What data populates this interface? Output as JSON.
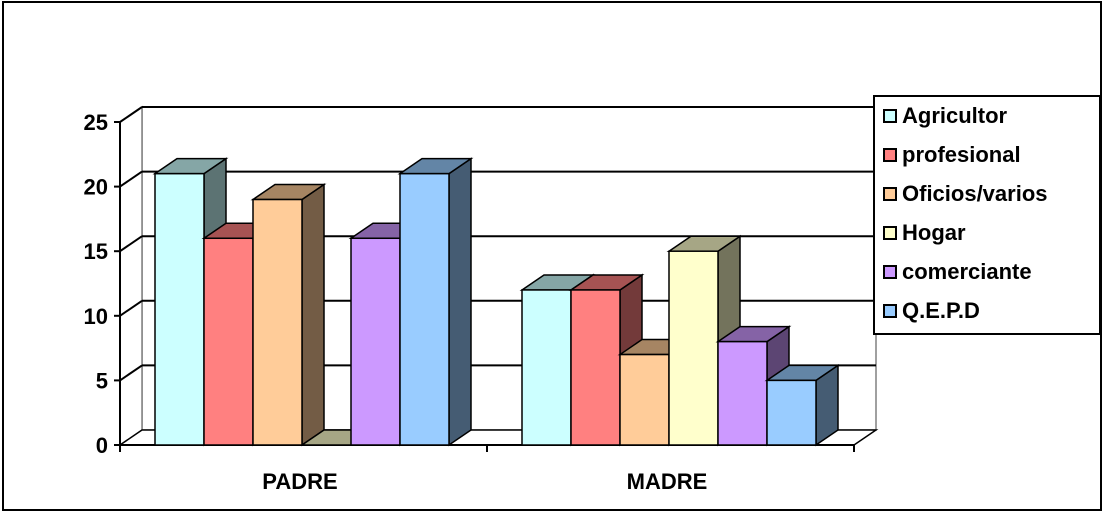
{
  "chart_data": {
    "type": "bar",
    "style": "3d-clustered",
    "categories": [
      "PADRE",
      "MADRE"
    ],
    "series": [
      {
        "name": "Agricultor",
        "values": [
          21,
          12
        ],
        "color": "#ccffff"
      },
      {
        "name": "profesional",
        "values": [
          16,
          12
        ],
        "color": "#ff8080"
      },
      {
        "name": "Oficios/varios",
        "values": [
          19,
          7
        ],
        "color": "#ffcc99"
      },
      {
        "name": "Hogar",
        "values": [
          0,
          15
        ],
        "color": "#ffffcc"
      },
      {
        "name": "comerciante",
        "values": [
          16,
          8
        ],
        "color": "#cc99ff"
      },
      {
        "name": "Q.E.P.D",
        "values": [
          21,
          5
        ],
        "color": "#99ccff"
      }
    ],
    "ylim": [
      0,
      25
    ],
    "yticks": [
      "0",
      "5",
      "10",
      "15",
      "20",
      "25"
    ],
    "grid": true,
    "legend_position": "right",
    "title": "",
    "xlabel": "",
    "ylabel": ""
  }
}
